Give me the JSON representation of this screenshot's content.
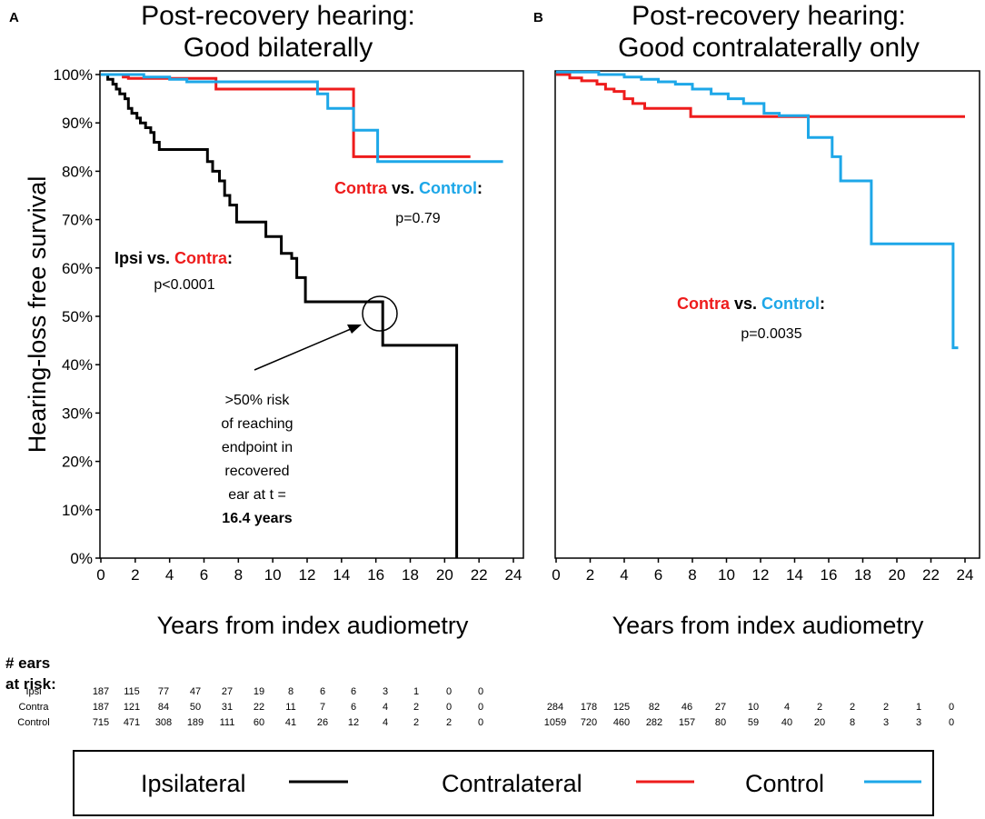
{
  "chart_data": [
    {
      "type": "line",
      "panel": "A",
      "title_lines": [
        "Post-recovery hearing:",
        "Good bilaterally"
      ],
      "xlabel": "Years from index audiometry",
      "ylabel": "Hearing-loss free survival",
      "xlim": [
        0,
        24
      ],
      "ylim": [
        0,
        100
      ],
      "x_ticks": [
        "0",
        "2",
        "4",
        "6",
        "8",
        "10",
        "12",
        "14",
        "16",
        "18",
        "20",
        "22",
        "24"
      ],
      "y_ticks": [
        "0%",
        "10%",
        "20%",
        "30%",
        "40%",
        "50%",
        "60%",
        "70%",
        "80%",
        "90%",
        "100%"
      ],
      "series": [
        {
          "name": "Ipsilateral",
          "color": "#000000",
          "points": [
            [
              0,
              100
            ],
            [
              0.4,
              99
            ],
            [
              0.7,
              98
            ],
            [
              0.9,
              97
            ],
            [
              1.1,
              96
            ],
            [
              1.4,
              95
            ],
            [
              1.6,
              93
            ],
            [
              1.8,
              92
            ],
            [
              2.1,
              91
            ],
            [
              2.3,
              90
            ],
            [
              2.6,
              89
            ],
            [
              2.9,
              88
            ],
            [
              3.1,
              86
            ],
            [
              3.4,
              84.5
            ],
            [
              5.9,
              84.5
            ],
            [
              6.2,
              82
            ],
            [
              6.5,
              80
            ],
            [
              6.9,
              78
            ],
            [
              7.2,
              75
            ],
            [
              7.5,
              73
            ],
            [
              7.9,
              69.5
            ],
            [
              9.5,
              69.5
            ],
            [
              9.6,
              66.5
            ],
            [
              10.5,
              63
            ],
            [
              11.1,
              62
            ],
            [
              11.4,
              58
            ],
            [
              11.9,
              53
            ],
            [
              16.0,
              53
            ],
            [
              16.4,
              44
            ],
            [
              20.7,
              44
            ],
            [
              20.7,
              0
            ]
          ]
        },
        {
          "name": "Contralateral",
          "color": "#ee1c1c",
          "points": [
            [
              0,
              100
            ],
            [
              1.3,
              99.5
            ],
            [
              1.6,
              99.2
            ],
            [
              6.6,
              99.2
            ],
            [
              6.7,
              97
            ],
            [
              14.5,
              97
            ],
            [
              14.7,
              83
            ],
            [
              21.5,
              83
            ]
          ]
        },
        {
          "name": "Control",
          "color": "#1da7e8",
          "points": [
            [
              0,
              100
            ],
            [
              2.5,
              99.5
            ],
            [
              4.0,
              99
            ],
            [
              5.0,
              98.5
            ],
            [
              12.4,
              98.5
            ],
            [
              12.6,
              96
            ],
            [
              13.2,
              93
            ],
            [
              14.6,
              93
            ],
            [
              14.7,
              88.5
            ],
            [
              15.4,
              88.5
            ],
            [
              16.1,
              82
            ],
            [
              23.4,
              82
            ]
          ]
        }
      ],
      "annotations": {
        "contra_control": {
          "a": "Contra",
          "vs": " vs. ",
          "b": "Control",
          "colon": ":",
          "p": "p=0.79"
        },
        "ipsi_contra": {
          "a": "Ipsi",
          "vs": " vs. ",
          "b": "Contra",
          "colon": ":",
          "p": "p<0.0001"
        },
        "risk_note": [
          ">50% risk",
          "of reaching",
          "endpoint in",
          "recovered",
          "ear at t =",
          "16.4 years"
        ]
      },
      "risk_table": {
        "Ipsi": [
          "187",
          "115",
          "77",
          "47",
          "27",
          "19",
          "8",
          "6",
          "6",
          "3",
          "1",
          "0",
          "0"
        ],
        "Contra": [
          "187",
          "121",
          "84",
          "50",
          "31",
          "22",
          "11",
          "7",
          "6",
          "4",
          "2",
          "0",
          "0"
        ],
        "Control": [
          "715",
          "471",
          "308",
          "189",
          "111",
          "60",
          "41",
          "26",
          "12",
          "4",
          "2",
          "2",
          "0"
        ]
      }
    },
    {
      "type": "line",
      "panel": "B",
      "title_lines": [
        "Post-recovery hearing:",
        "Good contralaterally only"
      ],
      "xlabel": "Years from index audiometry",
      "xlim": [
        0,
        24
      ],
      "ylim": [
        0,
        100
      ],
      "x_ticks": [
        "0",
        "2",
        "4",
        "6",
        "8",
        "10",
        "12",
        "14",
        "16",
        "18",
        "20",
        "22",
        "24"
      ],
      "series": [
        {
          "name": "Contralateral",
          "color": "#ee1c1c",
          "points": [
            [
              0,
              100
            ],
            [
              0.8,
              99.3
            ],
            [
              1.5,
              98.7
            ],
            [
              2.4,
              98
            ],
            [
              2.9,
              97
            ],
            [
              3.4,
              96.5
            ],
            [
              4.0,
              95
            ],
            [
              4.5,
              94
            ],
            [
              5.2,
              93
            ],
            [
              7.7,
              93
            ],
            [
              7.9,
              91.3
            ],
            [
              24,
              91.3
            ]
          ]
        },
        {
          "name": "Control",
          "color": "#1da7e8",
          "points": [
            [
              0,
              100.5
            ],
            [
              2.5,
              100
            ],
            [
              4.0,
              99.5
            ],
            [
              5.0,
              99
            ],
            [
              6.0,
              98.5
            ],
            [
              7.0,
              98
            ],
            [
              8.0,
              97
            ],
            [
              9.1,
              96
            ],
            [
              10.1,
              95
            ],
            [
              11.0,
              94
            ],
            [
              12.2,
              92
            ],
            [
              13.1,
              91.5
            ],
            [
              14.6,
              91.5
            ],
            [
              14.8,
              87
            ],
            [
              15.8,
              87
            ],
            [
              16.2,
              83
            ],
            [
              16.7,
              78
            ],
            [
              17.8,
              78
            ],
            [
              18.5,
              65
            ],
            [
              23.1,
              65
            ],
            [
              23.3,
              43.5
            ],
            [
              23.6,
              43.5
            ]
          ]
        }
      ],
      "annotations": {
        "contra_control": {
          "a": "Contra",
          "vs": " vs. ",
          "b": "Control",
          "colon": ":",
          "p": "p=0.0035"
        }
      },
      "risk_table": {
        "Contra": [
          "284",
          "178",
          "125",
          "82",
          "46",
          "27",
          "10",
          "4",
          "2",
          "2",
          "2",
          "1",
          "0"
        ],
        "Control": [
          "1059",
          "720",
          "460",
          "282",
          "157",
          "80",
          "59",
          "40",
          "20",
          "8",
          "3",
          "3",
          "0"
        ]
      }
    }
  ],
  "risk_header": [
    "# ears",
    "at risk:"
  ],
  "risk_labels": {
    "ipsi": "Ipsi",
    "contra": "Contra",
    "control": "Control"
  },
  "legend": [
    {
      "label": "Ipsilateral",
      "color": "#000000"
    },
    {
      "label": "Contralateral",
      "color": "#ee1c1c"
    },
    {
      "label": "Control",
      "color": "#1da7e8"
    }
  ]
}
